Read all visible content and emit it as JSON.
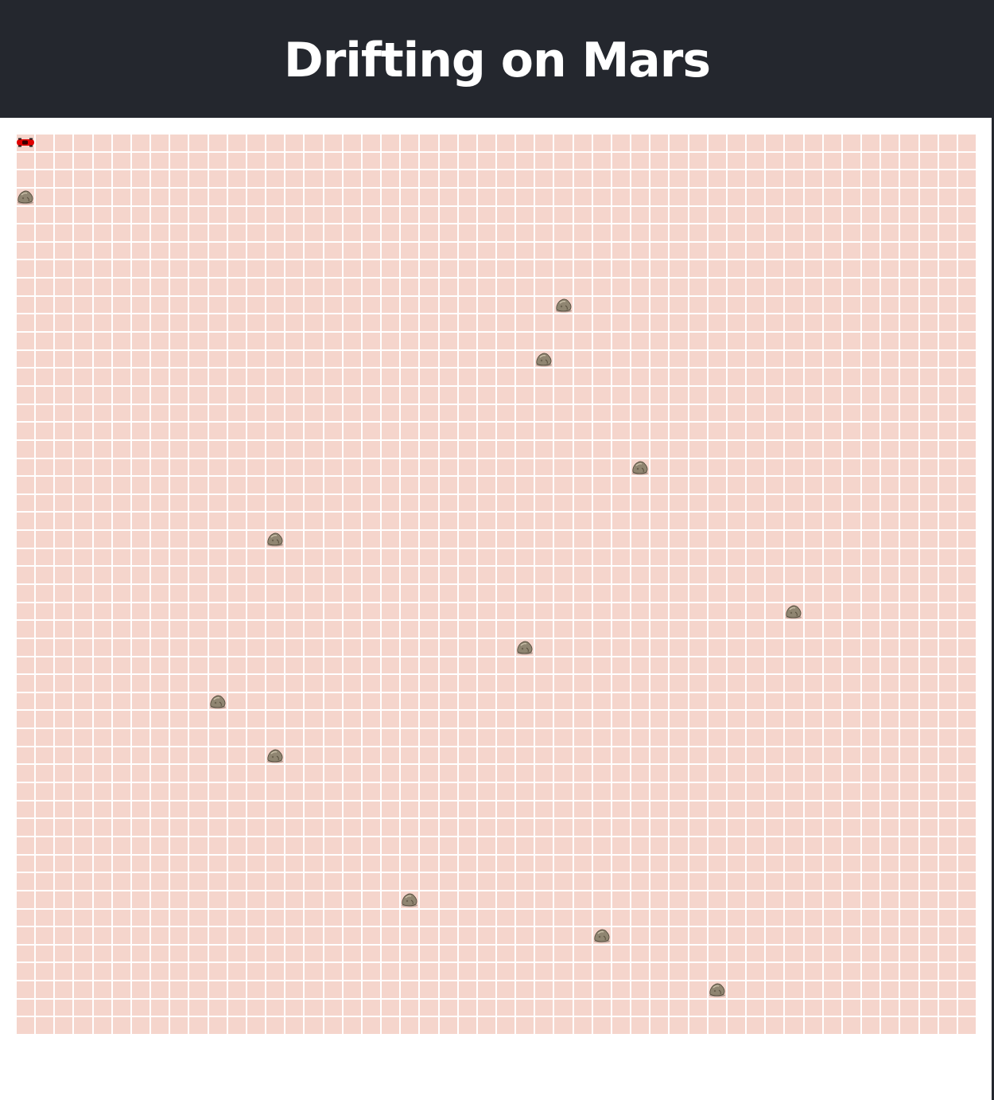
{
  "header": {
    "title": "Drifting on Mars",
    "background": "#24272e"
  },
  "board": {
    "cols": 50,
    "rows": 50,
    "cell_color": "#f5d5cc",
    "grid_line_color": "#ffffff",
    "player": {
      "icon": "red-car-icon",
      "col": 0,
      "row": 0,
      "color": "#e00000"
    },
    "rocks": [
      {
        "icon": "rock-icon",
        "col": 0,
        "row": 3
      },
      {
        "icon": "rock-icon",
        "col": 28,
        "row": 9
      },
      {
        "icon": "rock-icon",
        "col": 27,
        "row": 12
      },
      {
        "icon": "rock-icon",
        "col": 32,
        "row": 18
      },
      {
        "icon": "rock-icon",
        "col": 13,
        "row": 22
      },
      {
        "icon": "rock-icon",
        "col": 40,
        "row": 26
      },
      {
        "icon": "rock-icon",
        "col": 26,
        "row": 28
      },
      {
        "icon": "rock-icon",
        "col": 10,
        "row": 31
      },
      {
        "icon": "rock-icon",
        "col": 13,
        "row": 34
      },
      {
        "icon": "rock-icon",
        "col": 20,
        "row": 42
      },
      {
        "icon": "rock-icon",
        "col": 30,
        "row": 44
      },
      {
        "icon": "rock-icon",
        "col": 36,
        "row": 47
      }
    ]
  }
}
